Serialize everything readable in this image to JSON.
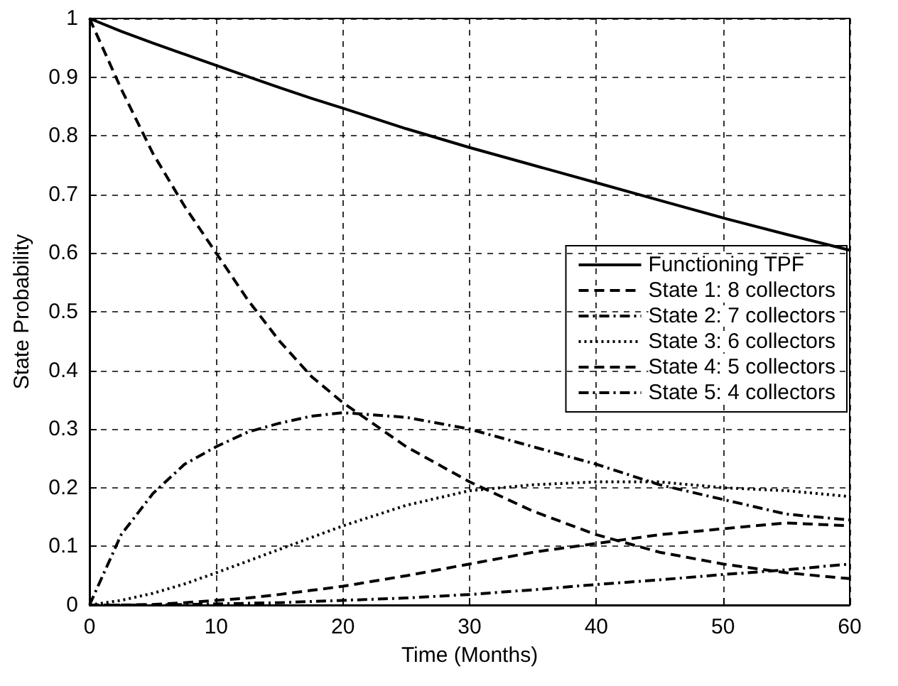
{
  "chart_data": {
    "type": "line",
    "xlabel": "Time (Months)",
    "ylabel": "State Probability",
    "xlim": [
      0,
      60
    ],
    "xticks": [
      0,
      10,
      20,
      30,
      40,
      50,
      60
    ],
    "ylim": [
      0,
      1
    ],
    "yticks": [
      0,
      0.1,
      0.2,
      0.3,
      0.4,
      0.5,
      0.6,
      0.7,
      0.8,
      0.9,
      1
    ],
    "grid": true,
    "legend": "right",
    "marker": "none",
    "x": [
      0,
      2.5,
      5,
      7.5,
      10,
      12.5,
      15,
      17.5,
      20,
      25,
      30,
      35,
      40,
      45,
      50,
      55,
      60
    ],
    "series": [
      {
        "name": "Functioning TPF",
        "color": "#000000",
        "line_style": "solid",
        "values": [
          1,
          0.978,
          0.958,
          0.939,
          0.92,
          0.901,
          0.882,
          0.864,
          0.847,
          0.812,
          0.78,
          0.75,
          0.72,
          0.69,
          0.66,
          0.632,
          0.605
        ]
      },
      {
        "name": "State 1: 8 collectors",
        "color": "#000000",
        "line_style": "dashed",
        "values": [
          1,
          0.88,
          0.77,
          0.68,
          0.6,
          0.52,
          0.45,
          0.39,
          0.345,
          0.27,
          0.21,
          0.16,
          0.12,
          0.09,
          0.07,
          0.055,
          0.045
        ]
      },
      {
        "name": "State 2: 7 collectors",
        "color": "#000000",
        "line_style": "dashdot",
        "values": [
          0,
          0.12,
          0.19,
          0.24,
          0.27,
          0.295,
          0.31,
          0.322,
          0.328,
          0.32,
          0.3,
          0.27,
          0.24,
          0.205,
          0.18,
          0.155,
          0.145
        ]
      },
      {
        "name": "State 3: 6 collectors",
        "color": "#000000",
        "line_style": "dotted",
        "values": [
          0,
          0.008,
          0.02,
          0.036,
          0.055,
          0.075,
          0.095,
          0.115,
          0.135,
          0.17,
          0.195,
          0.205,
          0.21,
          0.21,
          0.2,
          0.195,
          0.185
        ]
      },
      {
        "name": "State 4: 5 collectors",
        "color": "#000000",
        "line_style": "dashed",
        "values": [
          0,
          0,
          0.001,
          0.004,
          0.008,
          0.012,
          0.018,
          0.025,
          0.032,
          0.05,
          0.07,
          0.09,
          0.105,
          0.12,
          0.13,
          0.14,
          0.135
        ]
      },
      {
        "name": "State 5: 4 collectors",
        "color": "#000000",
        "line_style": "dashdot",
        "values": [
          0,
          0,
          0,
          0.001,
          0.002,
          0.003,
          0.004,
          0.006,
          0.008,
          0.012,
          0.018,
          0.026,
          0.035,
          0.043,
          0.052,
          0.06,
          0.07
        ]
      }
    ]
  }
}
